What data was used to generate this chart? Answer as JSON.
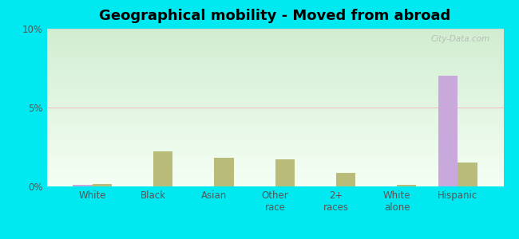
{
  "title": "Geographical mobility - Moved from abroad",
  "categories": [
    "White",
    "Black",
    "Asian",
    "Other\nrace",
    "2+\nraces",
    "White\nalone",
    "Hispanic"
  ],
  "waconia_values": [
    0.1,
    0.0,
    0.0,
    0.0,
    0.0,
    0.0,
    7.0
  ],
  "minnesota_values": [
    0.15,
    2.2,
    1.8,
    1.7,
    0.85,
    0.12,
    1.5
  ],
  "waconia_color": "#c9a8dc",
  "minnesota_color": "#b8bc78",
  "ylim": [
    0,
    10
  ],
  "yticks": [
    0,
    5,
    10
  ],
  "ytick_labels": [
    "0%",
    "5%",
    "10%"
  ],
  "bg_top": "#d4edda",
  "bg_bottom": "#f5fff5",
  "outer_bg": "#00e8f0",
  "bar_width": 0.32,
  "title_fontsize": 13,
  "tick_fontsize": 8.5,
  "legend_fontsize": 9.5,
  "watermark": "City-Data.com"
}
